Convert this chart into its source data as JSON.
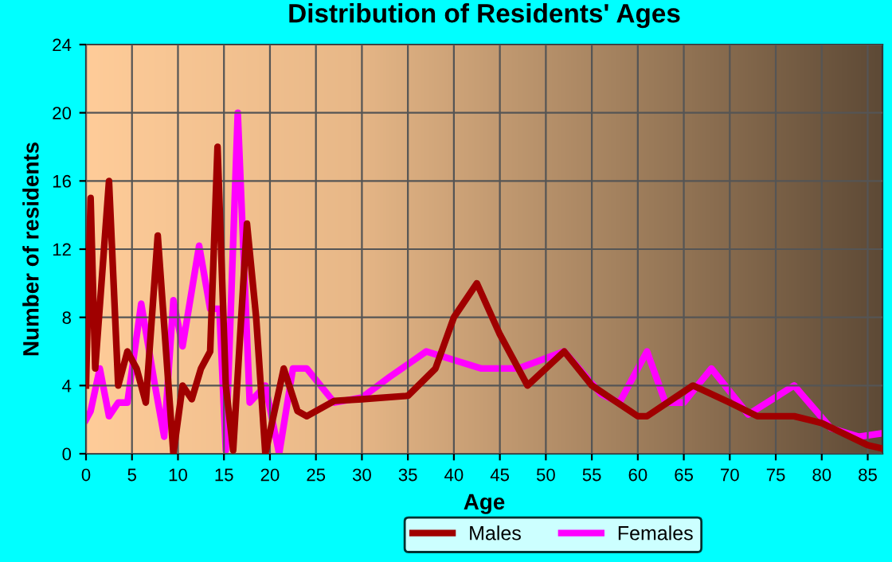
{
  "chart_data": {
    "type": "line",
    "title": "Distribution of Residents' Ages",
    "xlabel": "Age",
    "ylabel": "Number of residents",
    "xlim": [
      0,
      86.6
    ],
    "xticks": [
      0,
      5,
      10,
      15,
      20,
      25,
      30,
      35,
      40,
      45,
      50,
      55,
      60,
      65,
      70,
      75,
      80,
      85
    ],
    "ylim": [
      0,
      24
    ],
    "yticks": [
      0,
      4,
      8,
      12,
      16,
      20,
      24
    ],
    "grid": true,
    "legend": "bottom",
    "series": [
      {
        "name": "Males",
        "color": "#a00000",
        "x": [
          0,
          0.5,
          1,
          2.5,
          3.5,
          4.5,
          5.5,
          6.5,
          7.8,
          9.5,
          10.5,
          11.5,
          12.5,
          13.5,
          14.3,
          15.2,
          16,
          17.5,
          18.5,
          19.5,
          21.5,
          23,
          24,
          27,
          30,
          35,
          38,
          40,
          42.5,
          45,
          48,
          52,
          55,
          60,
          61,
          66,
          70,
          73,
          77,
          80,
          85,
          86.6
        ],
        "values": [
          4,
          15,
          5,
          16,
          4,
          6,
          5,
          3,
          12.8,
          0,
          4,
          3.2,
          5,
          6,
          18,
          4,
          0.2,
          13.5,
          8,
          0,
          5,
          2.5,
          2.2,
          3.1,
          3.2,
          3.4,
          5,
          8,
          10,
          7,
          4,
          6,
          4,
          2.2,
          2.2,
          4,
          3,
          2.2,
          2.2,
          1.8,
          0.5,
          0.3
        ]
      },
      {
        "name": "Females",
        "color": "#ff00ff",
        "x": [
          0,
          0.5,
          1.5,
          2.5,
          3.5,
          4.5,
          6,
          7.5,
          8.5,
          9.5,
          10.5,
          12.3,
          13.5,
          14.5,
          15.2,
          16.5,
          17.8,
          19.5,
          21,
          22.5,
          24,
          27,
          30,
          33,
          37,
          40,
          43,
          47,
          52,
          56,
          58,
          61,
          63,
          65,
          68,
          72,
          77,
          81,
          84,
          86.6
        ],
        "values": [
          2,
          2.5,
          5,
          2.2,
          3,
          3,
          8.8,
          4,
          1,
          9,
          6.3,
          12.2,
          8.5,
          8.5,
          0.2,
          20,
          3,
          4,
          0,
          5,
          5,
          3,
          3.3,
          4.5,
          6,
          5.5,
          5,
          5,
          6,
          3.5,
          3,
          6,
          3,
          3,
          5,
          2.3,
          4,
          1.5,
          1,
          1.2
        ]
      }
    ]
  }
}
